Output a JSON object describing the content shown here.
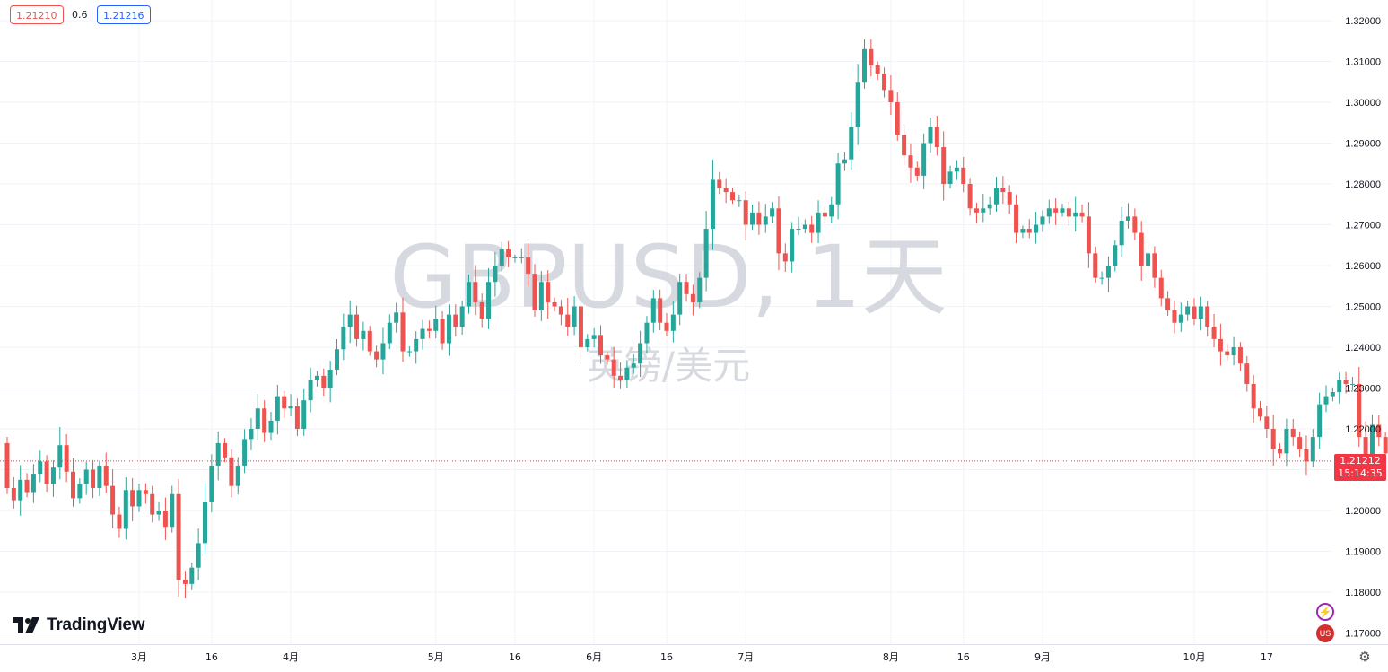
{
  "header": {
    "bid": "1.21210",
    "spread": "0.6",
    "ask": "1.21216"
  },
  "watermark": {
    "symbol_interval": "GBPUSD, 1天",
    "description": "英镑/美元"
  },
  "last_price": {
    "price": "1.21212",
    "countdown": "15:14:35"
  },
  "branding": {
    "name": "TradingView"
  },
  "colors": {
    "up": "#26a69a",
    "down": "#ef5350",
    "price_line": "#f23645",
    "grid": "#f0f3fa",
    "axis_text": "#131722"
  },
  "icons": [
    "lightning-icon",
    "us-flag-icon",
    "gear-icon"
  ],
  "chart_data": {
    "type": "candlestick",
    "title": "GBPUSD, 1天",
    "subtitle": "英镑/美元",
    "xlabel": "",
    "ylabel": "",
    "ylim": [
      1.165,
      1.325
    ],
    "grid": true,
    "y_ticks": [
      "1.32000",
      "1.31000",
      "1.30000",
      "1.29000",
      "1.28000",
      "1.27000",
      "1.26000",
      "1.25000",
      "1.24000",
      "1.23000",
      "1.22000",
      "1.21000",
      "1.20000",
      "1.19000",
      "1.18000",
      "1.17000"
    ],
    "x_ticks": [
      {
        "label": "3月",
        "index": 20
      },
      {
        "label": "16",
        "index": 31
      },
      {
        "label": "4月",
        "index": 43
      },
      {
        "label": "5月",
        "index": 65
      },
      {
        "label": "16",
        "index": 77
      },
      {
        "label": "6月",
        "index": 89
      },
      {
        "label": "16",
        "index": 100
      },
      {
        "label": "7月",
        "index": 112
      },
      {
        "label": "8月",
        "index": 134
      },
      {
        "label": "16",
        "index": 145
      },
      {
        "label": "9月",
        "index": 157
      },
      {
        "label": "10月",
        "index": 180
      },
      {
        "label": "17",
        "index": 191
      }
    ],
    "closes": [
      1.2055,
      1.2025,
      1.2075,
      1.2045,
      1.209,
      1.212,
      1.2065,
      1.2105,
      1.216,
      1.2095,
      1.203,
      1.2065,
      1.21,
      1.2055,
      1.211,
      1.206,
      1.199,
      1.1955,
      1.205,
      1.201,
      1.205,
      1.204,
      1.199,
      1.2,
      1.196,
      1.204,
      1.183,
      1.182,
      1.186,
      1.192,
      1.202,
      1.211,
      1.2165,
      1.213,
      1.206,
      1.211,
      1.2175,
      1.22,
      1.225,
      1.219,
      1.222,
      1.228,
      1.225,
      1.2255,
      1.22,
      1.227,
      1.232,
      1.233,
      1.23,
      1.2345,
      1.2395,
      1.245,
      1.248,
      1.242,
      1.244,
      1.239,
      1.237,
      1.241,
      1.246,
      1.2485,
      1.239,
      1.239,
      1.242,
      1.2445,
      1.244,
      1.247,
      1.241,
      1.248,
      1.245,
      1.25,
      1.256,
      1.251,
      1.247,
      1.256,
      1.26,
      1.264,
      1.262,
      1.262,
      1.262,
      1.258,
      1.249,
      1.256,
      1.251,
      1.25,
      1.248,
      1.245,
      1.25,
      1.24,
      1.242,
      1.243,
      1.238,
      1.237,
      1.233,
      1.232,
      1.235,
      1.236,
      1.241,
      1.246,
      1.252,
      1.246,
      1.244,
      1.248,
      1.256,
      1.253,
      1.251,
      1.257,
      1.269,
      1.281,
      1.279,
      1.278,
      1.276,
      1.276,
      1.27,
      1.273,
      1.27,
      1.272,
      1.274,
      1.263,
      1.261,
      1.269,
      1.269,
      1.27,
      1.268,
      1.273,
      1.272,
      1.275,
      1.285,
      1.286,
      1.294,
      1.305,
      1.313,
      1.309,
      1.307,
      1.303,
      1.3,
      1.292,
      1.287,
      1.284,
      1.282,
      1.29,
      1.294,
      1.289,
      1.28,
      1.283,
      1.284,
      1.28,
      1.274,
      1.273,
      1.274,
      1.275,
      1.279,
      1.278,
      1.275,
      1.268,
      1.269,
      1.268,
      1.27,
      1.272,
      1.274,
      1.273,
      1.274,
      1.272,
      1.273,
      1.272,
      1.263,
      1.257,
      1.257,
      1.26,
      1.265,
      1.271,
      1.272,
      1.268,
      1.26,
      1.263,
      1.257,
      1.252,
      1.249,
      1.246,
      1.248,
      1.25,
      1.247,
      1.25,
      1.245,
      1.242,
      1.239,
      1.238,
      1.24,
      1.236,
      1.231,
      1.225,
      1.223,
      1.22,
      1.215,
      1.214,
      1.22,
      1.218,
      1.215,
      1.212,
      1.218,
      1.226,
      1.228,
      1.229,
      1.232,
      1.231,
      1.231,
      1.218,
      1.212,
      1.221,
      1.218,
      1.214,
      1.2121
    ]
  }
}
